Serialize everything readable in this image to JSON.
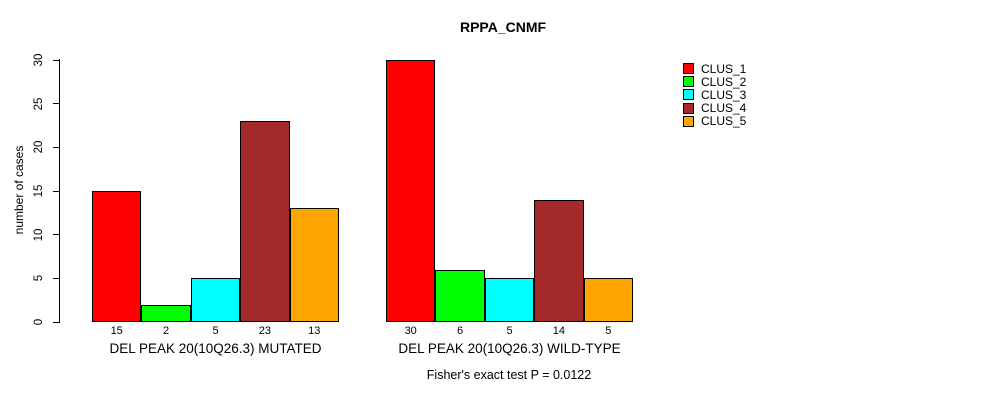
{
  "title": "RPPA_CNMF",
  "ylabel": "number of cases",
  "footer": "Fisher's exact test P = 0.0122",
  "legend": {
    "entries": [
      {
        "label": "CLUS_1",
        "color": "#FF0000"
      },
      {
        "label": "CLUS_2",
        "color": "#00FF00"
      },
      {
        "label": "CLUS_3",
        "color": "#00FFFF"
      },
      {
        "label": "CLUS_4",
        "color": "#A52A2A"
      },
      {
        "label": "CLUS_5",
        "color": "#FFA500"
      }
    ]
  },
  "chart_data": {
    "type": "bar",
    "title": "RPPA_CNMF",
    "xlabel": "",
    "ylabel": "number of cases",
    "ylim": [
      0,
      30
    ],
    "yticks": [
      0,
      5,
      10,
      15,
      20,
      25,
      30
    ],
    "grid": false,
    "legend_position": "right",
    "series_names": [
      "CLUS_1",
      "CLUS_2",
      "CLUS_3",
      "CLUS_4",
      "CLUS_5"
    ],
    "colors": [
      "#FF0000",
      "#00FF00",
      "#00FFFF",
      "#A52A2A",
      "#FFA500"
    ],
    "bar_border_color": "#000000",
    "groups": [
      {
        "label": "DEL PEAK 20(10Q26.3) MUTATED",
        "values": [
          15,
          2,
          5,
          23,
          13
        ]
      },
      {
        "label": "DEL PEAK 20(10Q26.3) WILD-TYPE",
        "values": [
          30,
          6,
          5,
          14,
          5
        ]
      }
    ],
    "annotation": "Fisher's exact test P = 0.0122"
  }
}
